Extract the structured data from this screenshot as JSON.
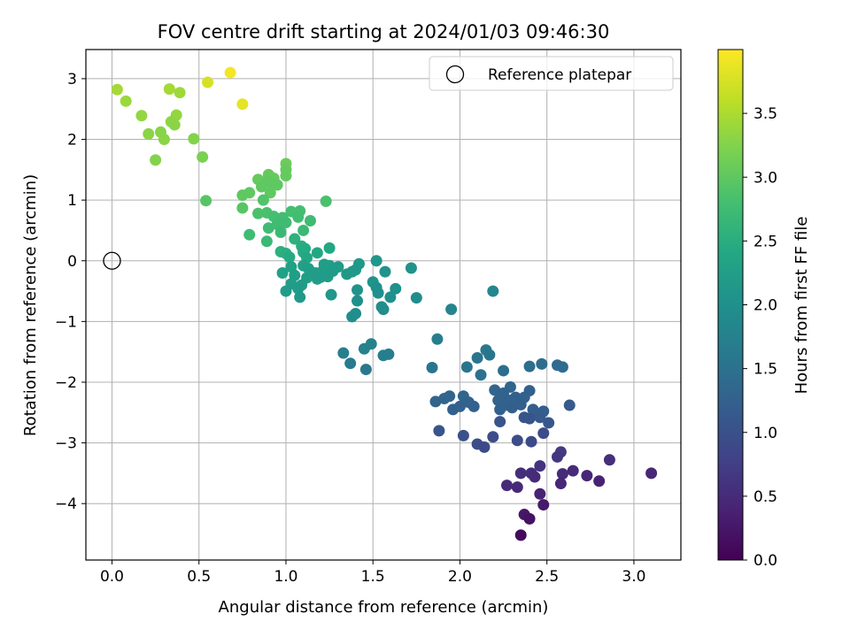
{
  "chart_data": {
    "type": "scatter",
    "title": "FOV centre drift starting at 2024/01/03 09:46:30",
    "xlabel": "Angular distance from reference (arcmin)",
    "ylabel": "Rotation from reference (arcmin)",
    "xlim": [
      -0.15,
      3.27
    ],
    "ylim": [
      -4.93,
      3.48
    ],
    "xticks": [
      0.0,
      0.5,
      1.0,
      1.5,
      2.0,
      2.5,
      3.0
    ],
    "xtick_labels": [
      "0.0",
      "0.5",
      "1.0",
      "1.5",
      "2.0",
      "2.5",
      "3.0"
    ],
    "yticks": [
      -4,
      -3,
      -2,
      -1,
      0,
      1,
      2,
      3
    ],
    "ytick_labels": [
      "−4",
      "−3",
      "−2",
      "−1",
      "0",
      "1",
      "2",
      "3"
    ],
    "grid": true,
    "legend": {
      "placement": "top-right",
      "entries": [
        "Reference platepar"
      ]
    },
    "reference_point": {
      "x": 0.0,
      "y": 0.0
    },
    "colorbar": {
      "label": "Hours from first FF file",
      "colormap": "viridis",
      "min": 0.0,
      "max": 4.0,
      "ticks": [
        0.0,
        0.5,
        1.0,
        1.5,
        2.0,
        2.5,
        3.0,
        3.5
      ],
      "tick_labels": [
        "0.0",
        "0.5",
        "1.0",
        "1.5",
        "2.0",
        "2.5",
        "3.0",
        "3.5"
      ]
    },
    "points": [
      {
        "x": 0.03,
        "y": 2.82,
        "t": 3.45
      },
      {
        "x": 0.08,
        "y": 2.63,
        "t": 3.4
      },
      {
        "x": 0.17,
        "y": 2.39,
        "t": 3.35
      },
      {
        "x": 0.21,
        "y": 2.09,
        "t": 3.3
      },
      {
        "x": 0.25,
        "y": 1.66,
        "t": 3.25
      },
      {
        "x": 0.28,
        "y": 2.12,
        "t": 3.28
      },
      {
        "x": 0.3,
        "y": 2.0,
        "t": 3.3
      },
      {
        "x": 0.33,
        "y": 2.83,
        "t": 3.45
      },
      {
        "x": 0.34,
        "y": 2.29,
        "t": 3.33
      },
      {
        "x": 0.36,
        "y": 2.24,
        "t": 3.3
      },
      {
        "x": 0.37,
        "y": 2.4,
        "t": 3.35
      },
      {
        "x": 0.39,
        "y": 2.77,
        "t": 3.42
      },
      {
        "x": 0.47,
        "y": 2.01,
        "t": 3.25
      },
      {
        "x": 0.52,
        "y": 1.71,
        "t": 3.2
      },
      {
        "x": 0.55,
        "y": 2.94,
        "t": 3.75
      },
      {
        "x": 0.68,
        "y": 3.1,
        "t": 3.95
      },
      {
        "x": 0.75,
        "y": 2.58,
        "t": 3.85
      },
      {
        "x": 0.54,
        "y": 0.99,
        "t": 2.95
      },
      {
        "x": 0.75,
        "y": 1.08,
        "t": 3.0
      },
      {
        "x": 0.75,
        "y": 0.87,
        "t": 2.95
      },
      {
        "x": 0.79,
        "y": 1.12,
        "t": 3.0
      },
      {
        "x": 0.84,
        "y": 1.34,
        "t": 3.05
      },
      {
        "x": 0.86,
        "y": 1.22,
        "t": 3.0
      },
      {
        "x": 0.89,
        "y": 1.3,
        "t": 3.0
      },
      {
        "x": 0.9,
        "y": 1.42,
        "t": 3.05
      },
      {
        "x": 0.91,
        "y": 1.12,
        "t": 3.0
      },
      {
        "x": 0.92,
        "y": 1.28,
        "t": 3.0
      },
      {
        "x": 0.93,
        "y": 1.36,
        "t": 3.05
      },
      {
        "x": 0.95,
        "y": 1.25,
        "t": 3.0
      },
      {
        "x": 1.0,
        "y": 1.6,
        "t": 3.1
      },
      {
        "x": 1.0,
        "y": 1.5,
        "t": 3.05
      },
      {
        "x": 1.0,
        "y": 1.4,
        "t": 3.05
      },
      {
        "x": 0.79,
        "y": 0.43,
        "t": 2.75
      },
      {
        "x": 0.84,
        "y": 0.78,
        "t": 2.85
      },
      {
        "x": 0.87,
        "y": 1.0,
        "t": 2.9
      },
      {
        "x": 0.89,
        "y": 0.79,
        "t": 2.85
      },
      {
        "x": 0.89,
        "y": 0.32,
        "t": 2.7
      },
      {
        "x": 0.9,
        "y": 0.54,
        "t": 2.75
      },
      {
        "x": 0.93,
        "y": 0.73,
        "t": 2.8
      },
      {
        "x": 0.95,
        "y": 0.6,
        "t": 2.75
      },
      {
        "x": 0.97,
        "y": 0.47,
        "t": 2.7
      },
      {
        "x": 0.98,
        "y": 0.71,
        "t": 2.78
      },
      {
        "x": 1.0,
        "y": 0.63,
        "t": 2.75
      },
      {
        "x": 1.03,
        "y": 0.81,
        "t": 2.8
      },
      {
        "x": 1.07,
        "y": 0.72,
        "t": 2.78
      },
      {
        "x": 1.08,
        "y": 0.82,
        "t": 2.8
      },
      {
        "x": 1.1,
        "y": 0.5,
        "t": 2.7
      },
      {
        "x": 1.14,
        "y": 0.66,
        "t": 2.75
      },
      {
        "x": 1.23,
        "y": 0.98,
        "t": 2.85
      },
      {
        "x": 0.97,
        "y": 0.15,
        "t": 2.55
      },
      {
        "x": 1.0,
        "y": 0.12,
        "t": 2.5
      },
      {
        "x": 1.02,
        "y": 0.06,
        "t": 2.45
      },
      {
        "x": 1.05,
        "y": 0.36,
        "t": 2.55
      },
      {
        "x": 1.09,
        "y": 0.24,
        "t": 2.5
      },
      {
        "x": 1.1,
        "y": 0.14,
        "t": 2.45
      },
      {
        "x": 1.11,
        "y": 0.2,
        "t": 2.45
      },
      {
        "x": 1.12,
        "y": 0.05,
        "t": 2.4
      },
      {
        "x": 1.18,
        "y": 0.13,
        "t": 2.4
      },
      {
        "x": 1.25,
        "y": 0.21,
        "t": 2.4
      },
      {
        "x": 0.98,
        "y": -0.2,
        "t": 2.3
      },
      {
        "x": 1.0,
        "y": -0.5,
        "t": 2.2
      },
      {
        "x": 1.03,
        "y": -0.38,
        "t": 2.25
      },
      {
        "x": 1.03,
        "y": -0.1,
        "t": 2.3
      },
      {
        "x": 1.05,
        "y": -0.24,
        "t": 2.25
      },
      {
        "x": 1.07,
        "y": -0.46,
        "t": 2.2
      },
      {
        "x": 1.08,
        "y": -0.6,
        "t": 2.15
      },
      {
        "x": 1.09,
        "y": -0.4,
        "t": 2.2
      },
      {
        "x": 1.1,
        "y": -0.08,
        "t": 2.3
      },
      {
        "x": 1.12,
        "y": -0.28,
        "t": 2.25
      },
      {
        "x": 1.13,
        "y": -0.13,
        "t": 2.25
      },
      {
        "x": 1.15,
        "y": -0.22,
        "t": 2.25
      },
      {
        "x": 1.17,
        "y": -0.2,
        "t": 2.22
      },
      {
        "x": 1.18,
        "y": -0.3,
        "t": 2.2
      },
      {
        "x": 1.2,
        "y": -0.27,
        "t": 2.2
      },
      {
        "x": 1.21,
        "y": -0.17,
        "t": 2.22
      },
      {
        "x": 1.22,
        "y": -0.06,
        "t": 2.25
      },
      {
        "x": 1.24,
        "y": -0.26,
        "t": 2.2
      },
      {
        "x": 1.24,
        "y": -0.13,
        "t": 2.22
      },
      {
        "x": 1.25,
        "y": -0.08,
        "t": 2.22
      },
      {
        "x": 1.26,
        "y": -0.56,
        "t": 2.1
      },
      {
        "x": 1.27,
        "y": -0.17,
        "t": 2.2
      },
      {
        "x": 1.3,
        "y": -0.1,
        "t": 2.2
      },
      {
        "x": 1.35,
        "y": -0.22,
        "t": 2.15
      },
      {
        "x": 1.38,
        "y": -0.18,
        "t": 2.15
      },
      {
        "x": 1.4,
        "y": -0.15,
        "t": 2.15
      },
      {
        "x": 1.42,
        "y": -0.05,
        "t": 2.15
      },
      {
        "x": 1.38,
        "y": -0.92,
        "t": 1.95
      },
      {
        "x": 1.4,
        "y": -0.87,
        "t": 1.95
      },
      {
        "x": 1.41,
        "y": -0.48,
        "t": 2.05
      },
      {
        "x": 1.41,
        "y": -0.66,
        "t": 2.0
      },
      {
        "x": 1.45,
        "y": -1.45,
        "t": 1.75
      },
      {
        "x": 1.5,
        "y": -0.35,
        "t": 2.05
      },
      {
        "x": 1.52,
        "y": 0.0,
        "t": 2.1
      },
      {
        "x": 1.52,
        "y": -0.44,
        "t": 2.0
      },
      {
        "x": 1.53,
        "y": -0.53,
        "t": 2.0
      },
      {
        "x": 1.55,
        "y": -0.76,
        "t": 1.95
      },
      {
        "x": 1.56,
        "y": -0.8,
        "t": 1.95
      },
      {
        "x": 1.57,
        "y": -0.18,
        "t": 2.05
      },
      {
        "x": 1.6,
        "y": -0.6,
        "t": 2.0
      },
      {
        "x": 1.63,
        "y": -0.46,
        "t": 2.0
      },
      {
        "x": 1.72,
        "y": -0.12,
        "t": 2.05
      },
      {
        "x": 1.75,
        "y": -0.61,
        "t": 1.95
      },
      {
        "x": 1.33,
        "y": -1.52,
        "t": 1.7
      },
      {
        "x": 1.37,
        "y": -1.69,
        "t": 1.65
      },
      {
        "x": 1.46,
        "y": -1.79,
        "t": 1.6
      },
      {
        "x": 1.49,
        "y": -1.37,
        "t": 1.75
      },
      {
        "x": 1.56,
        "y": -1.56,
        "t": 1.7
      },
      {
        "x": 1.59,
        "y": -1.54,
        "t": 1.7
      },
      {
        "x": 1.84,
        "y": -1.76,
        "t": 1.55
      },
      {
        "x": 1.87,
        "y": -1.29,
        "t": 1.7
      },
      {
        "x": 1.95,
        "y": -0.8,
        "t": 1.8
      },
      {
        "x": 2.04,
        "y": -1.75,
        "t": 1.55
      },
      {
        "x": 2.1,
        "y": -1.6,
        "t": 1.55
      },
      {
        "x": 2.12,
        "y": -1.88,
        "t": 1.5
      },
      {
        "x": 2.15,
        "y": -1.47,
        "t": 1.6
      },
      {
        "x": 2.17,
        "y": -1.55,
        "t": 1.55
      },
      {
        "x": 2.19,
        "y": -0.5,
        "t": 1.85
      },
      {
        "x": 2.25,
        "y": -1.81,
        "t": 1.45
      },
      {
        "x": 2.4,
        "y": -1.74,
        "t": 1.45
      },
      {
        "x": 2.47,
        "y": -1.7,
        "t": 1.45
      },
      {
        "x": 2.56,
        "y": -1.72,
        "t": 1.4
      },
      {
        "x": 2.59,
        "y": -1.75,
        "t": 1.4
      },
      {
        "x": 1.86,
        "y": -2.32,
        "t": 1.3
      },
      {
        "x": 1.91,
        "y": -2.27,
        "t": 1.3
      },
      {
        "x": 1.94,
        "y": -2.23,
        "t": 1.3
      },
      {
        "x": 1.96,
        "y": -2.45,
        "t": 1.25
      },
      {
        "x": 2.0,
        "y": -2.4,
        "t": 1.25
      },
      {
        "x": 2.02,
        "y": -2.23,
        "t": 1.3
      },
      {
        "x": 2.05,
        "y": -2.33,
        "t": 1.28
      },
      {
        "x": 2.08,
        "y": -2.4,
        "t": 1.25
      },
      {
        "x": 2.2,
        "y": -2.13,
        "t": 1.3
      },
      {
        "x": 2.22,
        "y": -2.3,
        "t": 1.28
      },
      {
        "x": 2.23,
        "y": -2.45,
        "t": 1.25
      },
      {
        "x": 2.25,
        "y": -2.18,
        "t": 1.28
      },
      {
        "x": 2.26,
        "y": -2.38,
        "t": 1.25
      },
      {
        "x": 2.28,
        "y": -2.3,
        "t": 1.25
      },
      {
        "x": 2.29,
        "y": -2.08,
        "t": 1.3
      },
      {
        "x": 2.3,
        "y": -2.42,
        "t": 1.22
      },
      {
        "x": 2.32,
        "y": -2.25,
        "t": 1.25
      },
      {
        "x": 2.35,
        "y": -2.37,
        "t": 1.22
      },
      {
        "x": 2.37,
        "y": -2.25,
        "t": 1.25
      },
      {
        "x": 2.4,
        "y": -2.14,
        "t": 1.25
      },
      {
        "x": 2.42,
        "y": -2.45,
        "t": 1.2
      },
      {
        "x": 2.44,
        "y": -2.52,
        "t": 1.18
      },
      {
        "x": 2.46,
        "y": -2.58,
        "t": 1.15
      },
      {
        "x": 2.48,
        "y": -2.48,
        "t": 1.18
      },
      {
        "x": 2.51,
        "y": -2.67,
        "t": 1.1
      },
      {
        "x": 2.63,
        "y": -2.38,
        "t": 1.15
      },
      {
        "x": 1.88,
        "y": -2.8,
        "t": 1.05
      },
      {
        "x": 2.02,
        "y": -2.88,
        "t": 1.0
      },
      {
        "x": 2.1,
        "y": -3.02,
        "t": 0.95
      },
      {
        "x": 2.14,
        "y": -3.07,
        "t": 0.9
      },
      {
        "x": 2.19,
        "y": -2.9,
        "t": 0.95
      },
      {
        "x": 2.23,
        "y": -2.65,
        "t": 1.05
      },
      {
        "x": 2.33,
        "y": -2.96,
        "t": 0.95
      },
      {
        "x": 2.37,
        "y": -2.58,
        "t": 1.05
      },
      {
        "x": 2.4,
        "y": -2.6,
        "t": 1.05
      },
      {
        "x": 2.41,
        "y": -2.98,
        "t": 0.9
      },
      {
        "x": 2.48,
        "y": -2.84,
        "t": 0.95
      },
      {
        "x": 2.27,
        "y": -3.7,
        "t": 0.5
      },
      {
        "x": 2.33,
        "y": -3.73,
        "t": 0.48
      },
      {
        "x": 2.35,
        "y": -3.5,
        "t": 0.55
      },
      {
        "x": 2.35,
        "y": -4.52,
        "t": 0.1
      },
      {
        "x": 2.37,
        "y": -4.18,
        "t": 0.25
      },
      {
        "x": 2.4,
        "y": -4.25,
        "t": 0.2
      },
      {
        "x": 2.41,
        "y": -3.5,
        "t": 0.55
      },
      {
        "x": 2.43,
        "y": -3.56,
        "t": 0.5
      },
      {
        "x": 2.46,
        "y": -3.38,
        "t": 0.6
      },
      {
        "x": 2.46,
        "y": -3.84,
        "t": 0.4
      },
      {
        "x": 2.48,
        "y": -4.02,
        "t": 0.3
      },
      {
        "x": 2.56,
        "y": -3.23,
        "t": 0.65
      },
      {
        "x": 2.58,
        "y": -3.15,
        "t": 0.7
      },
      {
        "x": 2.58,
        "y": -3.67,
        "t": 0.45
      },
      {
        "x": 2.59,
        "y": -3.51,
        "t": 0.5
      },
      {
        "x": 2.65,
        "y": -3.46,
        "t": 0.5
      },
      {
        "x": 2.73,
        "y": -3.54,
        "t": 0.45
      },
      {
        "x": 2.8,
        "y": -3.63,
        "t": 0.4
      },
      {
        "x": 2.86,
        "y": -3.28,
        "t": 0.55
      },
      {
        "x": 3.1,
        "y": -3.5,
        "t": 0.45
      }
    ]
  }
}
